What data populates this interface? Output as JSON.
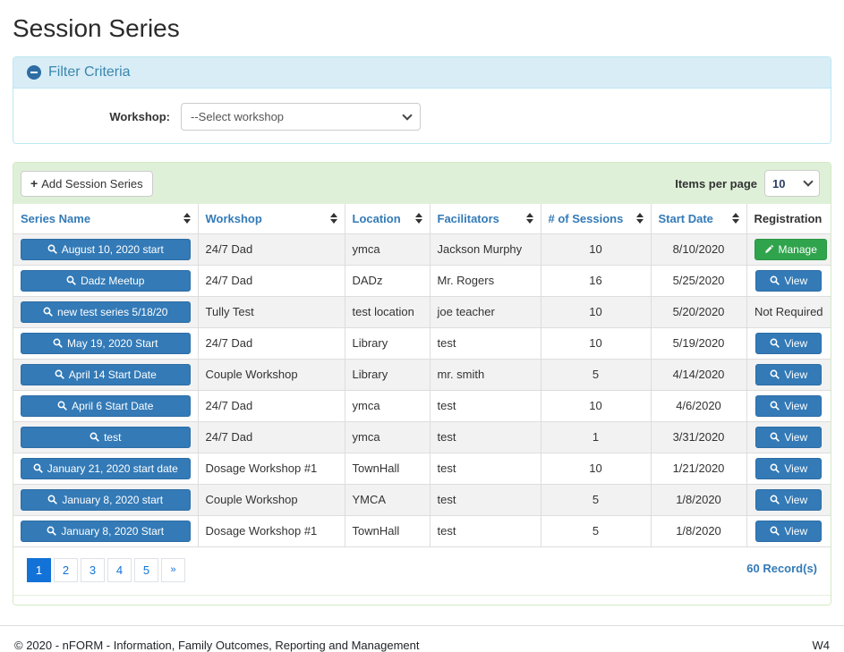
{
  "page": {
    "title": "Session Series"
  },
  "icons": {
    "plus": "+"
  },
  "filter": {
    "title": "Filter Criteria",
    "workshop_label": "Workshop:",
    "workshop_value": "--Select workshop"
  },
  "toolbar": {
    "add_label": "Add Session Series",
    "items_per_page_label": "Items per page",
    "items_per_page_value": "10"
  },
  "table": {
    "columns": [
      {
        "label": "Series Name",
        "sortable": true
      },
      {
        "label": "Workshop",
        "sortable": true
      },
      {
        "label": "Location",
        "sortable": true
      },
      {
        "label": "Facilitators",
        "sortable": true
      },
      {
        "label": "# of Sessions",
        "sortable": true
      },
      {
        "label": "Start Date",
        "sortable": true
      },
      {
        "label": "Registration",
        "sortable": false
      }
    ],
    "rows": [
      {
        "series_name": "August 10, 2020 start",
        "workshop": "24/7 Dad",
        "location": "ymca",
        "facilitators": "Jackson Murphy",
        "sessions": "10",
        "start_date": "8/10/2020",
        "registration": {
          "type": "manage",
          "label": "Manage"
        }
      },
      {
        "series_name": "Dadz Meetup",
        "workshop": "24/7 Dad",
        "location": "DADz",
        "facilitators": "Mr. Rogers",
        "sessions": "16",
        "start_date": "5/25/2020",
        "registration": {
          "type": "view",
          "label": "View"
        }
      },
      {
        "series_name": "new test series 5/18/20",
        "workshop": "Tully Test",
        "location": "test location",
        "facilitators": "joe teacher",
        "sessions": "10",
        "start_date": "5/20/2020",
        "registration": {
          "type": "text",
          "label": "Not Required"
        }
      },
      {
        "series_name": "May 19, 2020 Start",
        "workshop": "24/7 Dad",
        "location": "Library",
        "facilitators": "test",
        "sessions": "10",
        "start_date": "5/19/2020",
        "registration": {
          "type": "view",
          "label": "View"
        }
      },
      {
        "series_name": "April 14 Start Date",
        "workshop": "Couple Workshop",
        "location": "Library",
        "facilitators": "mr. smith",
        "sessions": "5",
        "start_date": "4/14/2020",
        "registration": {
          "type": "view",
          "label": "View"
        }
      },
      {
        "series_name": "April 6 Start Date",
        "workshop": "24/7 Dad",
        "location": "ymca",
        "facilitators": "test",
        "sessions": "10",
        "start_date": "4/6/2020",
        "registration": {
          "type": "view",
          "label": "View"
        }
      },
      {
        "series_name": "test",
        "workshop": "24/7 Dad",
        "location": "ymca",
        "facilitators": "test",
        "sessions": "1",
        "start_date": "3/31/2020",
        "registration": {
          "type": "view",
          "label": "View"
        }
      },
      {
        "series_name": "January 21, 2020 start date",
        "workshop": "Dosage Workshop #1",
        "location": "TownHall",
        "facilitators": "test",
        "sessions": "10",
        "start_date": "1/21/2020",
        "registration": {
          "type": "view",
          "label": "View"
        }
      },
      {
        "series_name": "January 8, 2020 start",
        "workshop": "Couple Workshop",
        "location": "YMCA",
        "facilitators": "test",
        "sessions": "5",
        "start_date": "1/8/2020",
        "registration": {
          "type": "view",
          "label": "View"
        }
      },
      {
        "series_name": "January 8, 2020 Start",
        "workshop": "Dosage Workshop #1",
        "location": "TownHall",
        "facilitators": "test",
        "sessions": "5",
        "start_date": "1/8/2020",
        "registration": {
          "type": "view",
          "label": "View"
        }
      }
    ]
  },
  "pagination": {
    "pages": [
      "1",
      "2",
      "3",
      "4",
      "5",
      "»"
    ],
    "active": "1",
    "record_count": "60 Record(s)"
  },
  "footer": {
    "copyright": "© 2020 - nFORM - Information, Family Outcomes, Reporting and Management",
    "version": "W4"
  },
  "colors": {
    "primary_blue": "#337ab7",
    "success_green": "#2fa44c",
    "active_page_blue": "#1272d8",
    "filter_header_bg": "#d9edf7",
    "table_header_bg": "#dff0d8"
  }
}
